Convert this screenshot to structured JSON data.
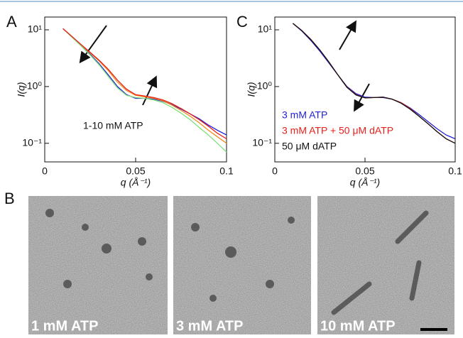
{
  "chart_data": [
    {
      "type": "line",
      "panel": "A",
      "xlabel": "q (Å⁻¹)",
      "ylabel": "I(q)",
      "log_y": true,
      "annotation": "1-10 mM ATP",
      "x": [
        0.01,
        0.015,
        0.02,
        0.025,
        0.03,
        0.035,
        0.04,
        0.045,
        0.05,
        0.055,
        0.06,
        0.065,
        0.07,
        0.075,
        0.08,
        0.085,
        0.09,
        0.095,
        0.1
      ],
      "series": [
        {
          "color": "#1f1fd6",
          "values": [
            10.5,
            7.5,
            5.3,
            3.7,
            2.5,
            1.6,
            1.0,
            0.72,
            0.62,
            0.62,
            0.6,
            0.55,
            0.48,
            0.4,
            0.33,
            0.27,
            0.21,
            0.17,
            0.14
          ]
        },
        {
          "color": "#f08c1c",
          "values": [
            10.5,
            7.6,
            5.4,
            3.9,
            2.8,
            1.9,
            1.2,
            0.85,
            0.7,
            0.66,
            0.62,
            0.56,
            0.47,
            0.38,
            0.3,
            0.23,
            0.17,
            0.13,
            0.1
          ]
        },
        {
          "color": "#7fe07a",
          "values": [
            10.5,
            7.4,
            5.2,
            3.6,
            2.4,
            1.5,
            0.95,
            0.7,
            0.64,
            0.62,
            0.58,
            0.52,
            0.43,
            0.34,
            0.26,
            0.19,
            0.14,
            0.1,
            0.07
          ]
        },
        {
          "color": "#e8201c",
          "values": [
            10.5,
            7.6,
            5.5,
            4.0,
            2.9,
            2.0,
            1.3,
            0.9,
            0.72,
            0.68,
            0.64,
            0.58,
            0.5,
            0.41,
            0.33,
            0.26,
            0.2,
            0.15,
            0.12
          ]
        }
      ],
      "xlim": [
        0,
        0.1
      ],
      "xticks": [
        0,
        0.05,
        0.1
      ],
      "ylim": [
        0.047,
        16.8
      ],
      "yticks": [
        {
          "value": 0.1,
          "label": "10⁻¹"
        },
        {
          "value": 1,
          "label": "10⁰"
        },
        {
          "value": 10,
          "label": "10¹"
        }
      ]
    },
    {
      "type": "line",
      "panel": "C",
      "xlabel": "q (Å⁻¹)",
      "ylabel": "I(q)",
      "log_y": true,
      "legend": "bottom-left",
      "x": [
        0.01,
        0.015,
        0.02,
        0.025,
        0.03,
        0.035,
        0.04,
        0.045,
        0.05,
        0.055,
        0.06,
        0.065,
        0.07,
        0.075,
        0.08,
        0.085,
        0.09,
        0.095,
        0.1
      ],
      "series": [
        {
          "name": "3 mM ATP",
          "color": "#1f1fd6",
          "values": [
            13,
            9.5,
            6.5,
            4.2,
            2.6,
            1.6,
            1.0,
            0.75,
            0.65,
            0.64,
            0.64,
            0.6,
            0.52,
            0.42,
            0.32,
            0.24,
            0.18,
            0.14,
            0.12
          ]
        },
        {
          "name": "3 mM ATP + 50 μM dATP",
          "color": "#e8201c",
          "values": [
            13,
            9.7,
            6.8,
            4.4,
            2.7,
            1.6,
            0.98,
            0.72,
            0.63,
            0.64,
            0.65,
            0.6,
            0.52,
            0.41,
            0.3,
            0.22,
            0.16,
            0.12,
            0.1
          ]
        },
        {
          "name": "50 μM dATP",
          "color": "#111111",
          "values": [
            13,
            9.7,
            6.7,
            4.4,
            2.7,
            1.6,
            0.97,
            0.71,
            0.63,
            0.64,
            0.65,
            0.6,
            0.51,
            0.4,
            0.3,
            0.22,
            0.16,
            0.12,
            0.1
          ]
        }
      ],
      "xlim": [
        0,
        0.1
      ],
      "xticks": [
        0,
        0.05,
        0.1
      ],
      "ylim": [
        0.047,
        16.8
      ],
      "yticks": [
        {
          "value": 0.1,
          "label": "10⁻¹"
        },
        {
          "value": 1,
          "label": "10⁰"
        },
        {
          "value": 10,
          "label": "10¹"
        }
      ]
    }
  ],
  "micrographs": {
    "panel": "B",
    "labels": [
      "1 mM ATP",
      "3 mM ATP",
      "10 mM ATP"
    ]
  }
}
